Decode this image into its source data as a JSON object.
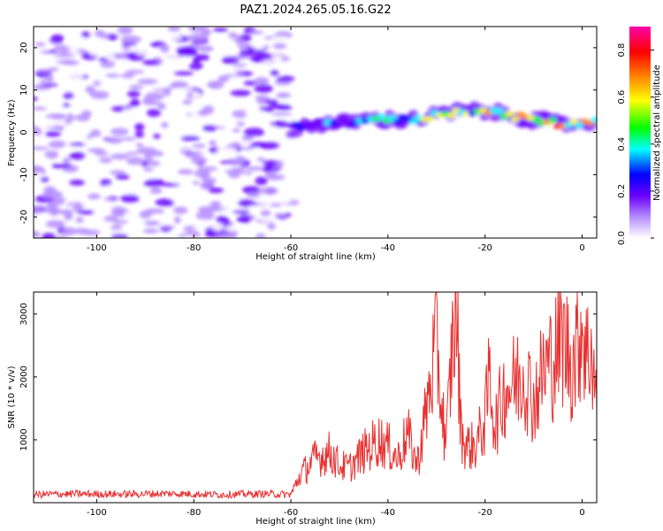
{
  "title": "PAZ1.2024.265.05.16.G22",
  "chart_data": [
    {
      "type": "heatmap",
      "title": "",
      "xlabel": "Height of straight line (km)",
      "ylabel": "Frequency (Hz)",
      "xlim": [
        -113,
        3
      ],
      "ylim": [
        -25,
        25
      ],
      "x_ticks": [
        -100,
        -80,
        -60,
        -40,
        -20,
        0
      ],
      "x_tick_labels": [
        "-100",
        "-80",
        "-60",
        "-40",
        "-20",
        "0"
      ],
      "y_ticks": [
        -20,
        -10,
        0,
        10,
        20
      ],
      "y_tick_labels": [
        "-20",
        "-10",
        "0",
        "10",
        "20"
      ],
      "colorbar": {
        "label": "Normalized spectral amplitude",
        "range": [
          0,
          0.9
        ],
        "ticks": [
          0.0,
          0.2,
          0.4,
          0.6,
          0.8
        ],
        "tick_labels": [
          "0.0",
          "0.2",
          "0.4",
          "0.6",
          "0.8"
        ],
        "colors": [
          "#ffffff",
          "#b58cff",
          "#6a00ff",
          "#0000ff",
          "#00ffff",
          "#00ff00",
          "#ffff00",
          "#ff8800",
          "#ff0000",
          "#ff00aa"
        ]
      },
      "ridge": {
        "description_points_x": [
          -60,
          -55,
          -50,
          -45,
          -40,
          -35,
          -30,
          -25,
          -20,
          -15,
          -10,
          -5,
          0,
          3
        ],
        "frequency_hz": [
          1,
          2,
          2,
          3,
          3,
          3,
          4,
          5,
          5,
          4,
          3,
          2,
          2,
          3
        ],
        "amplitude": [
          0.35,
          0.4,
          0.4,
          0.45,
          0.5,
          0.55,
          0.6,
          0.65,
          0.7,
          0.75,
          0.75,
          0.8,
          0.7,
          0.6
        ]
      },
      "noise_region_x": [
        -113,
        -60
      ],
      "grid": false
    },
    {
      "type": "line",
      "title": "",
      "xlabel": "Height of straight line (km)",
      "ylabel": "SNR (10 * v/v)",
      "xlim": [
        -113,
        3
      ],
      "ylim": [
        0,
        3350
      ],
      "x_ticks": [
        -100,
        -80,
        -60,
        -40,
        -20,
        0
      ],
      "x_tick_labels": [
        "-100",
        "-80",
        "-60",
        "-40",
        "-20",
        "0"
      ],
      "y_ticks": [
        1000,
        2000,
        3000
      ],
      "y_tick_labels": [
        "1000",
        "2000",
        "3000"
      ],
      "line_color": "#e83030",
      "grid": false,
      "series": [
        {
          "x": [
            -113,
            -105,
            -95,
            -85,
            -75,
            -65,
            -60,
            -58,
            -55,
            -52,
            -50,
            -48,
            -45,
            -42,
            -40,
            -38,
            -36,
            -34,
            -32,
            -30,
            -29,
            -28,
            -27,
            -26,
            -25,
            -24,
            -22,
            -20,
            -19,
            -18,
            -16,
            -14,
            -12,
            -10,
            -8,
            -6,
            -4,
            -2,
            0,
            1,
            2,
            3
          ],
          "y": [
            130,
            140,
            135,
            145,
            130,
            140,
            130,
            450,
            700,
            800,
            600,
            550,
            800,
            1000,
            900,
            700,
            1100,
            600,
            1500,
            2600,
            1600,
            900,
            2200,
            3300,
            1200,
            900,
            900,
            1300,
            2100,
            1200,
            1800,
            1900,
            2100,
            1600,
            2100,
            2300,
            2600,
            2200,
            2900,
            2300,
            2500,
            1500
          ]
        }
      ]
    }
  ]
}
